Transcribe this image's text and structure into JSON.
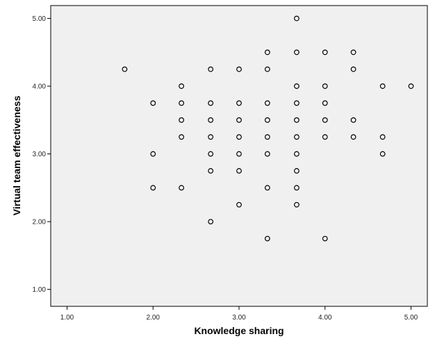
{
  "chart_data": {
    "type": "scatter",
    "x_label": "Knowledge sharing",
    "y_label": "Virtual team effectiveness",
    "x": [
      1.67,
      2,
      2,
      2,
      2.33,
      2.33,
      2.33,
      2.33,
      2.33,
      2.67,
      2.67,
      2.67,
      2.67,
      2.67,
      2.67,
      2.67,
      3,
      3,
      3,
      3,
      3,
      3,
      3,
      3.33,
      3.33,
      3.33,
      3.33,
      3.33,
      3.33,
      3.33,
      3.33,
      3.67,
      3.67,
      3.67,
      3.67,
      3.67,
      3.67,
      3.67,
      3.67,
      3.67,
      3.67,
      4,
      4,
      4,
      4,
      4,
      4,
      4.33,
      4.33,
      4.33,
      4.33,
      4.67,
      4.67,
      4.67,
      5
    ],
    "y": [
      4.25,
      3.75,
      3,
      2.5,
      4,
      3.75,
      3.5,
      3.25,
      2.5,
      4.25,
      3.75,
      3.5,
      3.25,
      3,
      2.75,
      2,
      4.25,
      3.75,
      3.5,
      3.25,
      3,
      2.75,
      2.25,
      4.5,
      4.25,
      3.75,
      3.5,
      3.25,
      3,
      2.5,
      1.75,
      5,
      4.5,
      4,
      3.75,
      3.5,
      3.25,
      3,
      2.75,
      2.5,
      2.25,
      4.5,
      4,
      3.75,
      3.5,
      3.25,
      1.75,
      4.5,
      4.25,
      3.5,
      3.25,
      4,
      3.25,
      3,
      4
    ],
    "xlim": [
      0.81,
      5.19
    ],
    "ylim": [
      0.75,
      5.19
    ],
    "xticks": [
      {
        "value": 1,
        "label": "1.00"
      },
      {
        "value": 2,
        "label": "2.00"
      },
      {
        "value": 3,
        "label": "3.00"
      },
      {
        "value": 4,
        "label": "4.00"
      },
      {
        "value": 5,
        "label": "5.00"
      }
    ],
    "yticks": [
      {
        "value": 1,
        "label": "1.00"
      },
      {
        "value": 2,
        "label": "2.00"
      },
      {
        "value": 3,
        "label": "3.00"
      },
      {
        "value": 4,
        "label": "4.00"
      },
      {
        "value": 5,
        "label": "5.00"
      }
    ],
    "color": "#000000"
  }
}
